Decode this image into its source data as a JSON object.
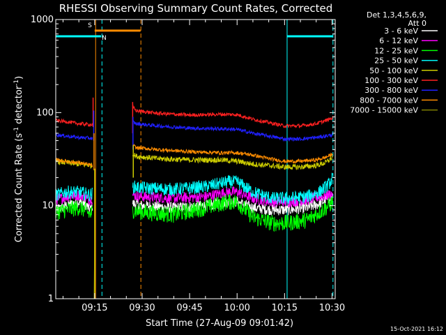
{
  "chart_data": {
    "type": "line",
    "title": "RHESSI Observing Summary Count Rates, Corrected",
    "xlabel": "Start Time (27-Aug-09 09:01:42)",
    "ylabel_main": "Corrected Count Rate (s",
    "ylabel_mid": " detector",
    "ylabel_end": ")",
    "ylabel_exp": "-1",
    "y_scale": "log",
    "ylim": [
      1,
      1000
    ],
    "y_ticks": [
      {
        "v": 1,
        "label": "1"
      },
      {
        "v": 10,
        "label": "10"
      },
      {
        "v": 100,
        "label": "100"
      },
      {
        "v": 1000,
        "label": "1000"
      }
    ],
    "x_start_minutes": 542.7,
    "x_end_minutes": 631.0,
    "x_ticks": [
      {
        "v": 555,
        "label": "09:15"
      },
      {
        "v": 570,
        "label": "09:30"
      },
      {
        "v": 585,
        "label": "09:45"
      },
      {
        "v": 600,
        "label": "10:00"
      },
      {
        "v": 615,
        "label": "10:15"
      },
      {
        "v": 630,
        "label": "10:30"
      }
    ],
    "legend_title_lines": [
      "Det 1,3,4,5,6,9,",
      "Att 0"
    ],
    "legend_placement": "right",
    "series": [
      {
        "name": "3 - 6 keV",
        "color": "#ffffff",
        "noise": 0.06,
        "segments": [
          {
            "x": [
              542.7,
              546,
              550,
              552,
              553.5,
              554.3
            ],
            "y": [
              9,
              10,
              11,
              10.5,
              9,
              10
            ]
          },
          {
            "x": [
              567.0,
              570,
              580,
              590,
              597,
              600,
              605,
              611,
              616,
              622,
              626,
              629,
              630.2
            ],
            "y": [
              10.5,
              10,
              9.5,
              10,
              11,
              11,
              9.5,
              9,
              9,
              9.5,
              10.5,
              12,
              12
            ]
          }
        ]
      },
      {
        "name": "6 - 12 keV",
        "color": "#ff00ff",
        "noise": 0.06,
        "segments": [
          {
            "x": [
              542.7,
              546,
              550,
              552,
              553.5,
              554.3
            ],
            "y": [
              11.5,
              12.5,
              13,
              12.5,
              11.5,
              12
            ]
          },
          {
            "x": [
              567.0,
              570,
              580,
              590,
              597,
              600,
              605,
              611,
              616,
              622,
              626,
              629,
              630.2
            ],
            "y": [
              13,
              12.5,
              12,
              12.5,
              14,
              14,
              12,
              11,
              11,
              11.5,
              12.5,
              13,
              13.5
            ]
          }
        ]
      },
      {
        "name": "12 - 25 keV",
        "color": "#00ff00",
        "noise": 0.09,
        "segments": [
          {
            "x": [
              542.7,
              546,
              550,
              552,
              553.5,
              554.3
            ],
            "y": [
              8.5,
              9,
              9.5,
              9,
              8,
              8.5
            ]
          },
          {
            "x": [
              567.0,
              570,
              580,
              590,
              597,
              600,
              605,
              611,
              616,
              622,
              626,
              629,
              630.2
            ],
            "y": [
              9,
              8.5,
              8,
              9.5,
              11,
              11,
              7.5,
              6.5,
              6.5,
              7,
              8.5,
              10,
              11
            ]
          }
        ]
      },
      {
        "name": "25 - 50 keV",
        "color": "#00ffff",
        "noise": 0.07,
        "segments": [
          {
            "x": [
              542.7,
              546,
              550,
              552,
              553.5,
              554.3
            ],
            "y": [
              13,
              14,
              14,
              13.5,
              13,
              13.5
            ]
          },
          {
            "x": [
              567.0,
              570,
              580,
              590,
              597,
              600,
              605,
              611,
              616,
              622,
              626,
              629,
              630.2
            ],
            "y": [
              16,
              15.5,
              15,
              16,
              18,
              18,
              14,
              12,
              12,
              12.5,
              14,
              17,
              20
            ]
          }
        ]
      },
      {
        "name": "50 - 100 keV",
        "color": "#cccc00",
        "noise": 0.03,
        "segments": [
          {
            "x": [
              542.7,
              546,
              550,
              554.3
            ],
            "y": [
              30,
              29,
              28,
              27
            ]
          },
          {
            "x": [
              567.0,
              568,
              575,
              585,
              595,
              600,
              605,
              610,
              615,
              620,
              625,
              628,
              630.2
            ],
            "y": [
              36,
              34,
              32,
              31,
              31,
              30,
              28,
              27,
              26,
              26,
              27,
              29,
              33
            ]
          }
        ]
      },
      {
        "name": "100 - 300 keV",
        "color": "#ff2020",
        "noise": 0.02,
        "segments": [
          {
            "x": [
              542.7,
              546,
              550,
              554.3
            ],
            "y": [
              82,
              80,
              76,
              74
            ]
          },
          {
            "x": [
              567.0,
              568,
              575,
              585,
              595,
              600,
              605,
              610,
              615,
              620,
              625,
              628,
              630.2
            ],
            "y": [
              115,
              105,
              98,
              94,
              96,
              95,
              85,
              78,
              72,
              72,
              76,
              82,
              88
            ]
          }
        ]
      },
      {
        "name": "300 - 800 keV",
        "color": "#2020ff",
        "noise": 0.02,
        "segments": [
          {
            "x": [
              542.7,
              546,
              550,
              554.3
            ],
            "y": [
              58,
              56,
              54,
              53
            ]
          },
          {
            "x": [
              567.0,
              568,
              575,
              585,
              595,
              600,
              605,
              610,
              615,
              620,
              625,
              628,
              630.2
            ],
            "y": [
              80,
              76,
              72,
              68,
              67,
              66,
              60,
              56,
              52,
              52,
              54,
              56,
              58
            ]
          }
        ]
      },
      {
        "name": "800 - 7000 keV",
        "color": "#ff8c00",
        "noise": 0.02,
        "segments": [
          {
            "x": [
              542.7,
              546,
              550,
              554.3
            ],
            "y": [
              31,
              30,
              29,
              27
            ]
          },
          {
            "x": [
              567.0,
              568,
              575,
              585,
              595,
              600,
              605,
              610,
              615,
              620,
              625,
              628,
              630.2
            ],
            "y": [
              45,
              42,
              40,
              38,
              37,
              37,
              35,
              32,
              30,
              30,
              31,
              33,
              36
            ]
          }
        ]
      },
      {
        "name": "7000 - 15000 keV",
        "color": "#808000",
        "noise": 0.0,
        "segments": [
          {
            "x": [
              554.8,
              555.0
            ],
            "y": [
              1,
              3.6
            ]
          }
        ]
      }
    ],
    "spikes": [
      {
        "x": 554.5,
        "y_from": 70,
        "y_to": 145,
        "color": "#ff2020"
      },
      {
        "x": 554.7,
        "y_from": 50,
        "y_to": 105,
        "color": "#2020ff"
      },
      {
        "x": 554.8,
        "y_from": 24,
        "y_to": 60,
        "color": "#ff8c00"
      },
      {
        "x": 555.0,
        "y_from": 1,
        "y_to": 25,
        "color": "#cccc00"
      },
      {
        "x": 567.0,
        "y_from": 60,
        "y_to": 130,
        "color": "#ff2020"
      },
      {
        "x": 567.1,
        "y_from": 40,
        "y_to": 90,
        "color": "#2020ff"
      },
      {
        "x": 567.2,
        "y_from": 20,
        "y_to": 45,
        "color": "#cccc00"
      }
    ],
    "flag_bars": [
      {
        "label": "S",
        "color": "#ff8c00",
        "x_start": 555.0,
        "x_end": 569.5,
        "y": 760,
        "label_x": 553.5,
        "text_dy": -5
      },
      {
        "label": "N",
        "color": "#00ffff",
        "x_start": 542.7,
        "x_end": 557.0,
        "y": 660,
        "label_x": 558.0,
        "text_dy": 5
      },
      {
        "label": "",
        "color": "#00ffff",
        "x_start": 615.8,
        "x_end": 630.2,
        "y": 660,
        "label_x": 0,
        "text_dy": 0
      }
    ],
    "vertical_lines": [
      {
        "x": 555.3,
        "color": "#ff8c00",
        "style": "solid"
      },
      {
        "x": 557.3,
        "color": "#00ffff",
        "style": "dashed"
      },
      {
        "x": 569.6,
        "color": "#ff8c00",
        "style": "dashed"
      },
      {
        "x": 615.8,
        "color": "#00ffff",
        "style": "solid"
      },
      {
        "x": 630.3,
        "color": "#00ffff",
        "style": "dashed"
      }
    ]
  },
  "footer_timestamp": "15-Oct-2021 16:12"
}
